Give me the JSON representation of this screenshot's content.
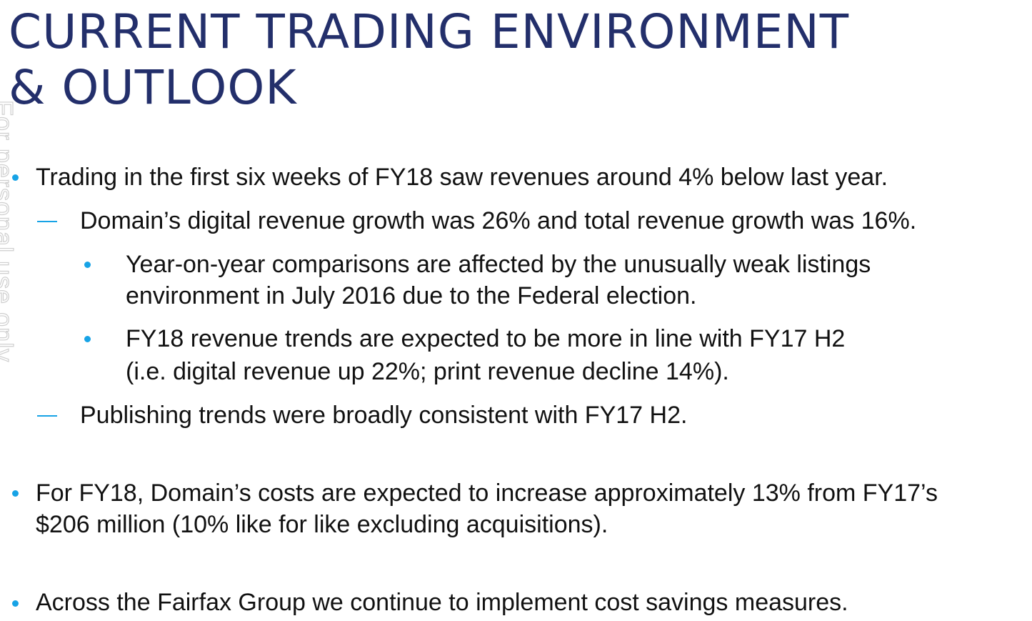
{
  "title": {
    "line1": "CURRENT TRADING ENVIRONMENT",
    "line2": "& OUTLOOK"
  },
  "watermark": "For personal use only",
  "bullets": {
    "b1": "Trading in the first six weeks of FY18 saw revenues around 4% below last year.",
    "b1_sub1": "Domain’s digital revenue growth was 26% and total revenue growth was 16%.",
    "b1_sub1_a_line1": "Year-on-year comparisons are affected by the unusually weak listings",
    "b1_sub1_a_line2": "environment in July 2016 due to the Federal election.",
    "b1_sub1_b_line1": "FY18 revenue trends are expected to be more in line with FY17 H2",
    "b1_sub1_b_line2": "(i.e. digital revenue up 22%; print revenue decline 14%).",
    "b1_sub2": "Publishing trends were broadly consistent with FY17 H2.",
    "b2_line1": "For FY18, Domain’s costs are expected to increase approximately 13% from FY17’s",
    "b2_line2": "$206 million (10% like for like excluding acquisitions).",
    "b3": "Across the Fairfax Group we continue to implement cost savings measures."
  },
  "colors": {
    "title": "#232f6b",
    "accent": "#17a3e6",
    "text": "#111111"
  }
}
